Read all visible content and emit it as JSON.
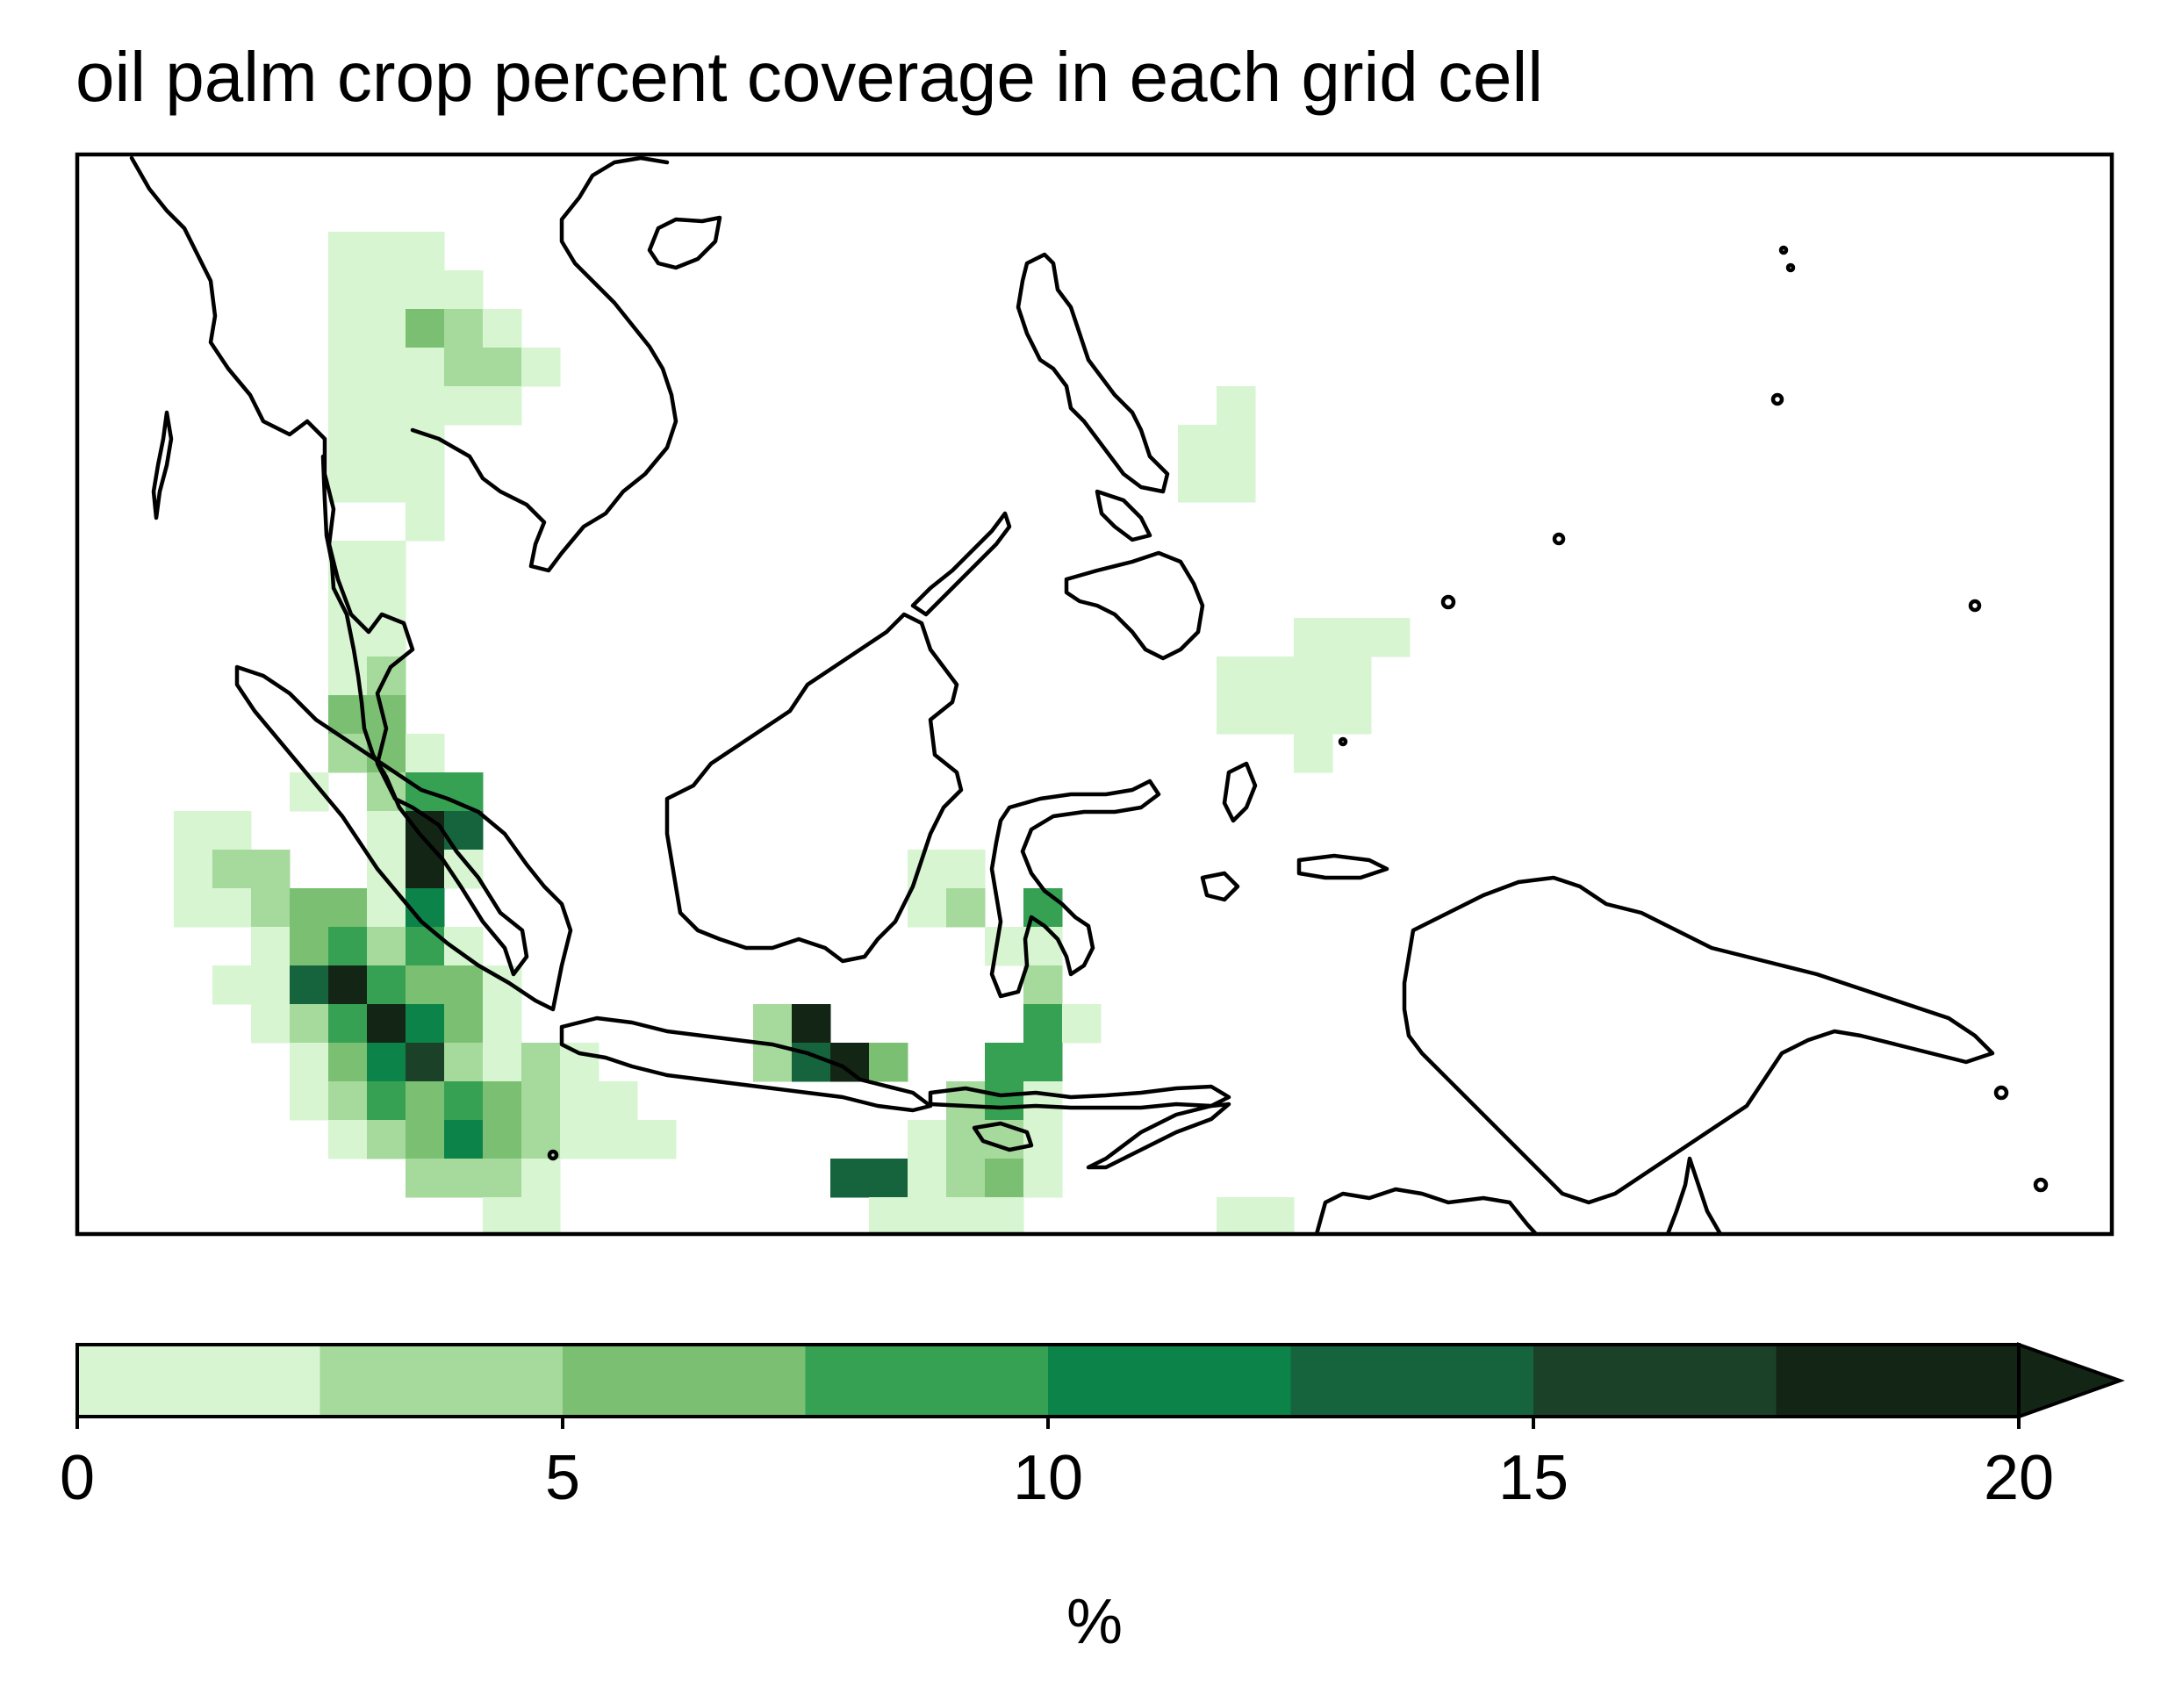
{
  "title": "oil palm crop percent coverage in each grid cell",
  "colorbar": {
    "label": "%",
    "ticks": [
      "0",
      "5",
      "10",
      "15",
      "20"
    ],
    "extend": "max",
    "bins": [
      0,
      2.5,
      5,
      7.5,
      10,
      12.5,
      15,
      17.5,
      20
    ],
    "colors": [
      "#d6f5d0",
      "#a6d99c",
      "#7bc072",
      "#36a153",
      "#0c8348",
      "#16643e",
      "#1b4229",
      "#132616"
    ]
  },
  "map": {
    "region": "Southeast Asia (Maritime)",
    "coastline_color": "#000000",
    "cells": [
      {
        "lon": 98.0,
        "lat": 23.0,
        "v": 1
      },
      {
        "lon": 99.0,
        "lat": 23.0,
        "v": 1
      },
      {
        "lon": 100.0,
        "lat": 23.0,
        "v": 1
      },
      {
        "lon": 98.0,
        "lat": 22.0,
        "v": 1
      },
      {
        "lon": 99.0,
        "lat": 22.0,
        "v": 1
      },
      {
        "lon": 100.0,
        "lat": 22.0,
        "v": 1
      },
      {
        "lon": 101.0,
        "lat": 22.0,
        "v": 1
      },
      {
        "lon": 98.0,
        "lat": 21.0,
        "v": 1
      },
      {
        "lon": 99.0,
        "lat": 21.0,
        "v": 1
      },
      {
        "lon": 100.0,
        "lat": 21.0,
        "v": 6
      },
      {
        "lon": 101.0,
        "lat": 21.0,
        "v": 4
      },
      {
        "lon": 102.0,
        "lat": 21.0,
        "v": 1
      },
      {
        "lon": 98.0,
        "lat": 20.0,
        "v": 1
      },
      {
        "lon": 99.0,
        "lat": 20.0,
        "v": 1
      },
      {
        "lon": 100.0,
        "lat": 20.0,
        "v": 1
      },
      {
        "lon": 101.0,
        "lat": 20.0,
        "v": 4
      },
      {
        "lon": 102.0,
        "lat": 20.0,
        "v": 4
      },
      {
        "lon": 103.0,
        "lat": 20.0,
        "v": 1
      },
      {
        "lon": 98.0,
        "lat": 19.0,
        "v": 1
      },
      {
        "lon": 99.0,
        "lat": 19.0,
        "v": 1
      },
      {
        "lon": 100.0,
        "lat": 19.0,
        "v": 1
      },
      {
        "lon": 101.0,
        "lat": 19.0,
        "v": 1
      },
      {
        "lon": 102.0,
        "lat": 19.0,
        "v": 1
      },
      {
        "lon": 98.0,
        "lat": 18.0,
        "v": 1
      },
      {
        "lon": 99.0,
        "lat": 18.0,
        "v": 1
      },
      {
        "lon": 100.0,
        "lat": 18.0,
        "v": 1
      },
      {
        "lon": 98.0,
        "lat": 17.0,
        "v": 1
      },
      {
        "lon": 99.0,
        "lat": 17.0,
        "v": 1
      },
      {
        "lon": 100.0,
        "lat": 17.0,
        "v": 1
      },
      {
        "lon": 100.0,
        "lat": 16.0,
        "v": 1
      },
      {
        "lon": 98.0,
        "lat": 15.0,
        "v": 1
      },
      {
        "lon": 99.0,
        "lat": 15.0,
        "v": 1
      },
      {
        "lon": 98.0,
        "lat": 14.0,
        "v": 1
      },
      {
        "lon": 99.0,
        "lat": 14.0,
        "v": 1
      },
      {
        "lon": 98.0,
        "lat": 13.0,
        "v": 1
      },
      {
        "lon": 99.0,
        "lat": 13.0,
        "v": 1
      },
      {
        "lon": 98.0,
        "lat": 12.0,
        "v": 1
      },
      {
        "lon": 99.0,
        "lat": 12.0,
        "v": 4
      },
      {
        "lon": 98.0,
        "lat": 11.0,
        "v": 6
      },
      {
        "lon": 99.0,
        "lat": 11.0,
        "v": 6
      },
      {
        "lon": 98.0,
        "lat": 10.0,
        "v": 4
      },
      {
        "lon": 99.0,
        "lat": 10.0,
        "v": 6
      },
      {
        "lon": 100.0,
        "lat": 10.0,
        "v": 1
      },
      {
        "lon": 97.0,
        "lat": 9.0,
        "v": 1
      },
      {
        "lon": 99.0,
        "lat": 9.0,
        "v": 4
      },
      {
        "lon": 100.0,
        "lat": 9.0,
        "v": 9
      },
      {
        "lon": 101.0,
        "lat": 9.0,
        "v": 9
      },
      {
        "lon": 94.0,
        "lat": 8.0,
        "v": 1
      },
      {
        "lon": 95.0,
        "lat": 8.0,
        "v": 1
      },
      {
        "lon": 99.0,
        "lat": 8.0,
        "v": 1
      },
      {
        "lon": 100.0,
        "lat": 8.0,
        "v": 19
      },
      {
        "lon": 101.0,
        "lat": 8.0,
        "v": 14
      },
      {
        "lon": 94.0,
        "lat": 7.0,
        "v": 1
      },
      {
        "lon": 95.0,
        "lat": 7.0,
        "v": 4
      },
      {
        "lon": 96.0,
        "lat": 7.0,
        "v": 4
      },
      {
        "lon": 99.0,
        "lat": 7.0,
        "v": 1
      },
      {
        "lon": 100.0,
        "lat": 7.0,
        "v": 19
      },
      {
        "lon": 101.0,
        "lat": 7.0,
        "v": 1
      },
      {
        "lon": 94.0,
        "lat": 6.0,
        "v": 1
      },
      {
        "lon": 95.0,
        "lat": 6.0,
        "v": 1
      },
      {
        "lon": 96.0,
        "lat": 6.0,
        "v": 4
      },
      {
        "lon": 97.0,
        "lat": 6.0,
        "v": 6
      },
      {
        "lon": 98.0,
        "lat": 6.0,
        "v": 6
      },
      {
        "lon": 99.0,
        "lat": 6.0,
        "v": 1
      },
      {
        "lon": 100.0,
        "lat": 6.0,
        "v": 11
      },
      {
        "lon": 96.0,
        "lat": 5.0,
        "v": 1
      },
      {
        "lon": 97.0,
        "lat": 5.0,
        "v": 6
      },
      {
        "lon": 98.0,
        "lat": 5.0,
        "v": 9
      },
      {
        "lon": 99.0,
        "lat": 5.0,
        "v": 4
      },
      {
        "lon": 100.0,
        "lat": 5.0,
        "v": 9
      },
      {
        "lon": 101.0,
        "lat": 5.0,
        "v": 1
      },
      {
        "lon": 95.0,
        "lat": 4.0,
        "v": 1
      },
      {
        "lon": 96.0,
        "lat": 4.0,
        "v": 1
      },
      {
        "lon": 97.0,
        "lat": 4.0,
        "v": 14
      },
      {
        "lon": 98.0,
        "lat": 4.0,
        "v": 19
      },
      {
        "lon": 99.0,
        "lat": 4.0,
        "v": 9
      },
      {
        "lon": 100.0,
        "lat": 4.0,
        "v": 6
      },
      {
        "lon": 101.0,
        "lat": 4.0,
        "v": 6
      },
      {
        "lon": 102.0,
        "lat": 4.0,
        "v": 1
      },
      {
        "lon": 96.0,
        "lat": 3.0,
        "v": 1
      },
      {
        "lon": 97.0,
        "lat": 3.0,
        "v": 4
      },
      {
        "lon": 98.0,
        "lat": 3.0,
        "v": 9
      },
      {
        "lon": 99.0,
        "lat": 3.0,
        "v": 19
      },
      {
        "lon": 100.0,
        "lat": 3.0,
        "v": 11
      },
      {
        "lon": 101.0,
        "lat": 3.0,
        "v": 6
      },
      {
        "lon": 102.0,
        "lat": 3.0,
        "v": 1
      },
      {
        "lon": 97.0,
        "lat": 2.0,
        "v": 1
      },
      {
        "lon": 98.0,
        "lat": 2.0,
        "v": 6
      },
      {
        "lon": 99.0,
        "lat": 2.0,
        "v": 11
      },
      {
        "lon": 100.0,
        "lat": 2.0,
        "v": 16
      },
      {
        "lon": 101.0,
        "lat": 2.0,
        "v": 4
      },
      {
        "lon": 102.0,
        "lat": 2.0,
        "v": 1
      },
      {
        "lon": 103.0,
        "lat": 2.0,
        "v": 4
      },
      {
        "lon": 104.0,
        "lat": 2.0,
        "v": 1
      },
      {
        "lon": 97.0,
        "lat": 1.0,
        "v": 1
      },
      {
        "lon": 98.0,
        "lat": 1.0,
        "v": 4
      },
      {
        "lon": 99.0,
        "lat": 1.0,
        "v": 9
      },
      {
        "lon": 100.0,
        "lat": 1.0,
        "v": 6
      },
      {
        "lon": 101.0,
        "lat": 1.0,
        "v": 9
      },
      {
        "lon": 102.0,
        "lat": 1.0,
        "v": 6
      },
      {
        "lon": 103.0,
        "lat": 1.0,
        "v": 4
      },
      {
        "lon": 104.0,
        "lat": 1.0,
        "v": 1
      },
      {
        "lon": 105.0,
        "lat": 1.0,
        "v": 1
      },
      {
        "lon": 98.0,
        "lat": 0.0,
        "v": 1
      },
      {
        "lon": 99.0,
        "lat": 0.0,
        "v": 4
      },
      {
        "lon": 100.0,
        "lat": 0.0,
        "v": 6
      },
      {
        "lon": 101.0,
        "lat": 0.0,
        "v": 11
      },
      {
        "lon": 102.0,
        "lat": 0.0,
        "v": 6
      },
      {
        "lon": 103.0,
        "lat": 0.0,
        "v": 4
      },
      {
        "lon": 104.0,
        "lat": 0.0,
        "v": 1
      },
      {
        "lon": 105.0,
        "lat": 0.0,
        "v": 1
      },
      {
        "lon": 106.0,
        "lat": 0.0,
        "v": 1
      },
      {
        "lon": 100.0,
        "lat": -1.0,
        "v": 4
      },
      {
        "lon": 101.0,
        "lat": -1.0,
        "v": 4
      },
      {
        "lon": 102.0,
        "lat": -1.0,
        "v": 4
      },
      {
        "lon": 103.0,
        "lat": -1.0,
        "v": 1
      },
      {
        "lon": 102.0,
        "lat": -2.0,
        "v": 1
      },
      {
        "lon": 103.0,
        "lat": -2.0,
        "v": 1
      },
      {
        "lon": 101.0,
        "lat": -3.0,
        "v": 1
      },
      {
        "lon": 102.0,
        "lat": -3.0,
        "v": 1
      },
      {
        "lon": 103.0,
        "lat": -3.0,
        "v": 1
      },
      {
        "lon": 104.0,
        "lat": -3.0,
        "v": 1
      },
      {
        "lon": 105.0,
        "lat": -3.0,
        "v": 1
      },
      {
        "lon": 102.0,
        "lat": -4.0,
        "v": 1
      },
      {
        "lon": 103.0,
        "lat": -4.0,
        "v": 1
      },
      {
        "lon": 104.0,
        "lat": -4.0,
        "v": 1
      },
      {
        "lon": 105.0,
        "lat": -4.0,
        "v": 1
      },
      {
        "lon": 104.0,
        "lat": -5.0,
        "v": 1
      },
      {
        "lon": 105.0,
        "lat": -5.0,
        "v": 1
      },
      {
        "lon": 113.0,
        "lat": 7.0,
        "v": 1
      },
      {
        "lon": 114.0,
        "lat": 7.0,
        "v": 1
      },
      {
        "lon": 113.0,
        "lat": 6.0,
        "v": 1
      },
      {
        "lon": 114.0,
        "lat": 6.0,
        "v": 4
      },
      {
        "lon": 116.0,
        "lat": 6.0,
        "v": 9
      },
      {
        "lon": 115.0,
        "lat": 5.0,
        "v": 1
      },
      {
        "lon": 116.0,
        "lat": 5.0,
        "v": 1
      },
      {
        "lon": 116.0,
        "lat": 4.0,
        "v": 4
      },
      {
        "lon": 109.0,
        "lat": 3.0,
        "v": 4
      },
      {
        "lon": 110.0,
        "lat": 3.0,
        "v": 19
      },
      {
        "lon": 116.0,
        "lat": 3.0,
        "v": 9
      },
      {
        "lon": 117.0,
        "lat": 3.0,
        "v": 1
      },
      {
        "lon": 109.0,
        "lat": 2.0,
        "v": 4
      },
      {
        "lon": 110.0,
        "lat": 2.0,
        "v": 14
      },
      {
        "lon": 111.0,
        "lat": 2.0,
        "v": 19
      },
      {
        "lon": 112.0,
        "lat": 2.0,
        "v": 6
      },
      {
        "lon": 115.0,
        "lat": 2.0,
        "v": 9
      },
      {
        "lon": 116.0,
        "lat": 2.0,
        "v": 9
      },
      {
        "lon": 114.0,
        "lat": 1.0,
        "v": 4
      },
      {
        "lon": 115.0,
        "lat": 1.0,
        "v": 9
      },
      {
        "lon": 116.0,
        "lat": 1.0,
        "v": 1
      },
      {
        "lon": 113.0,
        "lat": 0.0,
        "v": 1
      },
      {
        "lon": 114.0,
        "lat": 0.0,
        "v": 4
      },
      {
        "lon": 115.0,
        "lat": 0.0,
        "v": 4
      },
      {
        "lon": 116.0,
        "lat": 0.0,
        "v": 1
      },
      {
        "lon": 111.0,
        "lat": -1.0,
        "v": 14
      },
      {
        "lon": 112.0,
        "lat": -1.0,
        "v": 14
      },
      {
        "lon": 113.0,
        "lat": -1.0,
        "v": 1
      },
      {
        "lon": 114.0,
        "lat": -1.0,
        "v": 4
      },
      {
        "lon": 115.0,
        "lat": -1.0,
        "v": 6
      },
      {
        "lon": 116.0,
        "lat": -1.0,
        "v": 1
      },
      {
        "lon": 112.0,
        "lat": -2.0,
        "v": 1
      },
      {
        "lon": 113.0,
        "lat": -2.0,
        "v": 1
      },
      {
        "lon": 114.0,
        "lat": -2.0,
        "v": 1
      },
      {
        "lon": 115.0,
        "lat": -2.0,
        "v": 1
      },
      {
        "lon": 114.0,
        "lat": -3.0,
        "v": 1
      },
      {
        "lon": 121.0,
        "lat": 19.0,
        "v": 1
      },
      {
        "lon": 120.0,
        "lat": 18.0,
        "v": 1
      },
      {
        "lon": 121.0,
        "lat": 18.0,
        "v": 1
      },
      {
        "lon": 120.0,
        "lat": 17.0,
        "v": 1
      },
      {
        "lon": 121.0,
        "lat": 17.0,
        "v": 1
      },
      {
        "lon": 123.0,
        "lat": 13.0,
        "v": 1
      },
      {
        "lon": 124.0,
        "lat": 13.0,
        "v": 1
      },
      {
        "lon": 125.0,
        "lat": 13.0,
        "v": 1
      },
      {
        "lon": 121.0,
        "lat": 12.0,
        "v": 1
      },
      {
        "lon": 122.0,
        "lat": 12.0,
        "v": 1
      },
      {
        "lon": 123.0,
        "lat": 12.0,
        "v": 1
      },
      {
        "lon": 124.0,
        "lat": 12.0,
        "v": 1
      },
      {
        "lon": 121.0,
        "lat": 11.0,
        "v": 1
      },
      {
        "lon": 122.0,
        "lat": 11.0,
        "v": 1
      },
      {
        "lon": 123.0,
        "lat": 11.0,
        "v": 1
      },
      {
        "lon": 124.0,
        "lat": 11.0,
        "v": 1
      },
      {
        "lon": 123.0,
        "lat": 10.0,
        "v": 1
      },
      {
        "lon": 121.0,
        "lat": -2.0,
        "v": 1
      },
      {
        "lon": 122.0,
        "lat": -2.0,
        "v": 1
      },
      {
        "lon": 120.0,
        "lat": -3.0,
        "v": 1
      },
      {
        "lon": 121.0,
        "lat": -3.0,
        "v": 1
      },
      {
        "lon": 122.0,
        "lat": -3.0,
        "v": 1
      },
      {
        "lon": 120.0,
        "lat": -4.0,
        "v": 1
      }
    ]
  }
}
